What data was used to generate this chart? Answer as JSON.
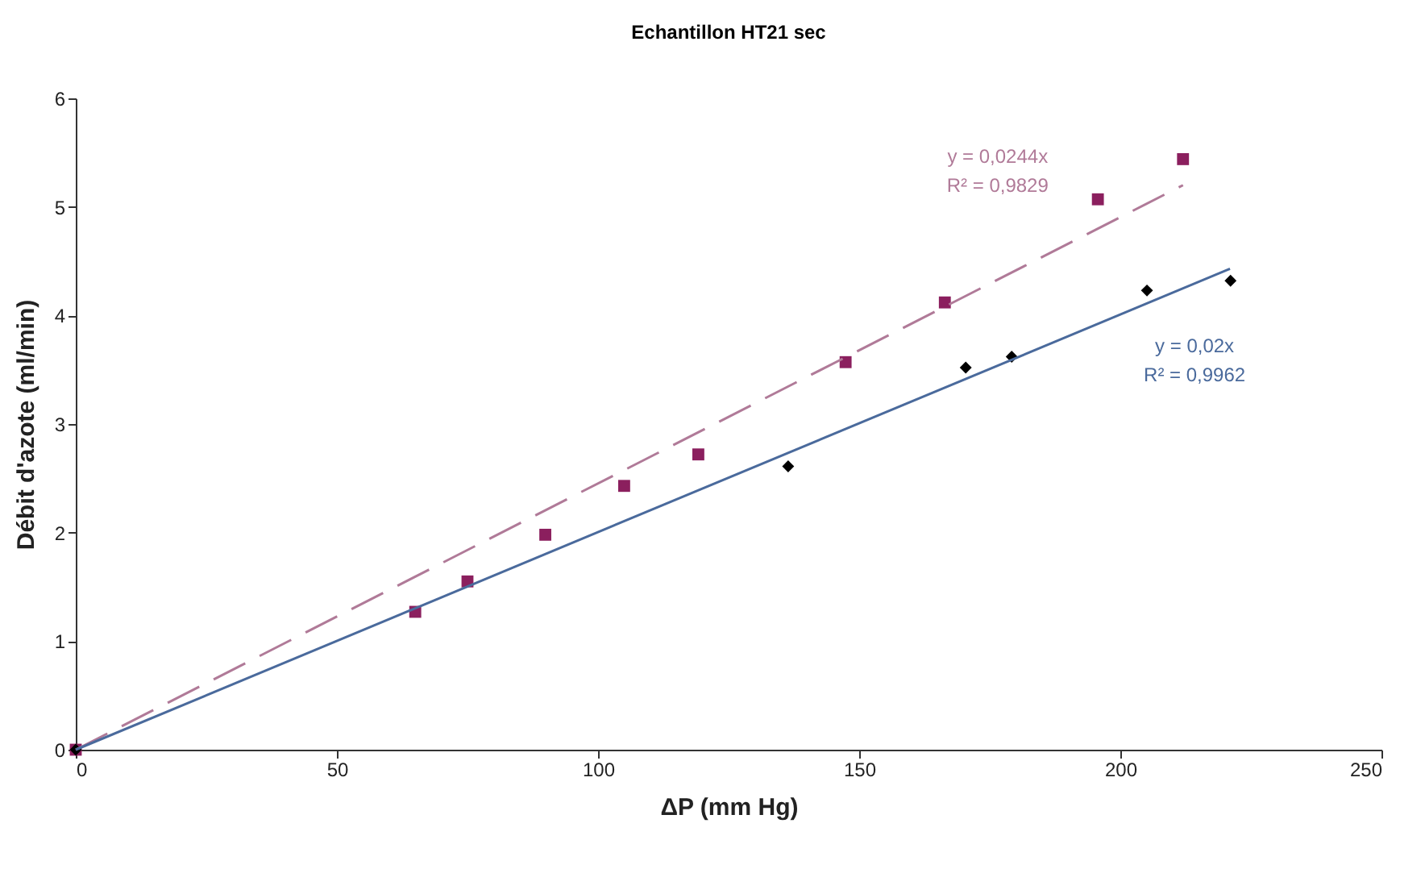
{
  "chart_data": {
    "type": "scatter",
    "title": "Echantillon HT21 sec",
    "xlabel": "ΔP (mm Hg)",
    "ylabel": "Débit d'azote (ml/min)",
    "xlim": [
      0,
      250
    ],
    "xticks": [
      0,
      50,
      100,
      150,
      200,
      250
    ],
    "ylim": [
      0,
      6
    ],
    "yticks": [
      0,
      1,
      2,
      3,
      4,
      5,
      6
    ],
    "grid": false,
    "series": [
      {
        "marker": "square",
        "color": "#8b1f5e",
        "x": [
          0,
          65,
          75,
          89.9,
          105,
          119.2,
          147.4,
          166.4,
          195.7,
          212
        ],
        "values": [
          0,
          1.27,
          1.55,
          1.98,
          2.43,
          2.72,
          3.57,
          4.12,
          5.07,
          5.44
        ]
      },
      {
        "marker": "diamond",
        "color": "#000000",
        "x": [
          0,
          136.4,
          170.4,
          179.2,
          205.1,
          221.1
        ],
        "values": [
          0,
          2.61,
          3.52,
          3.62,
          4.23,
          4.32
        ]
      },
      {
        "type": "line",
        "marker": "none",
        "line_style": "dashed",
        "color": "#b07a98",
        "x": [
          0,
          212
        ],
        "values": [
          0,
          5.2
        ]
      },
      {
        "type": "line",
        "marker": "none",
        "line_style": "solid",
        "color": "#4a6a9c",
        "x": [
          0,
          221
        ],
        "values": [
          0,
          4.43
        ]
      }
    ],
    "annotations": [
      "y = 0,0244x",
      "R² = 0,9829",
      "y = 0,02x",
      "R² = 0,9962"
    ]
  }
}
